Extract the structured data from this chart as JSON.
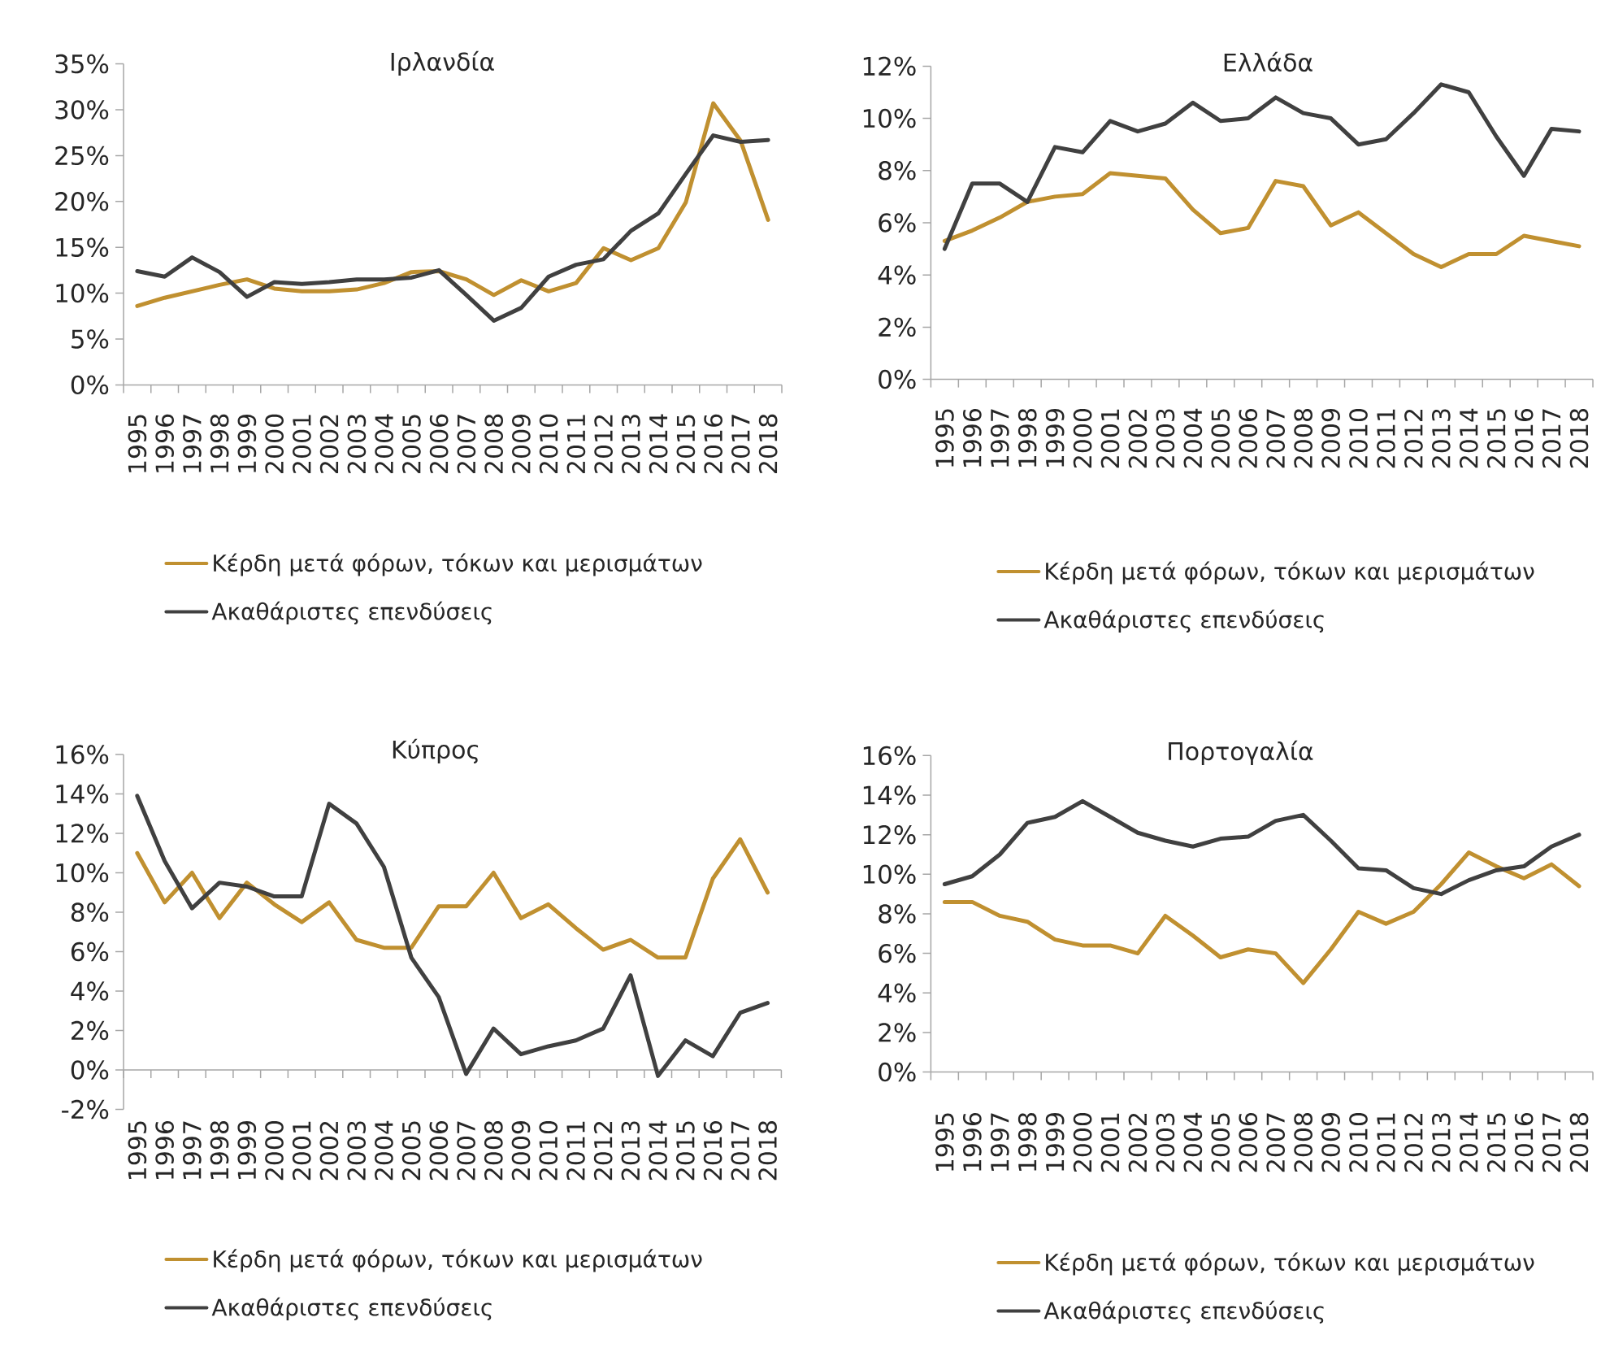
{
  "chart_data": [
    {
      "type": "line",
      "title": "Ιρλανδία",
      "categories": [
        "1995",
        "1996",
        "1997",
        "1998",
        "1999",
        "2000",
        "2001",
        "2002",
        "2003",
        "2004",
        "2005",
        "2006",
        "2007",
        "2008",
        "2009",
        "2010",
        "2011",
        "2012",
        "2013",
        "2014",
        "2015",
        "2016",
        "2017",
        "2018"
      ],
      "series": [
        {
          "name": "Κέρδη μετά φόρων, τόκων και μερισμάτων",
          "color": "#c09030",
          "values": [
            8.6,
            9.5,
            10.2,
            10.9,
            11.5,
            10.5,
            10.2,
            10.2,
            10.4,
            11.1,
            12.3,
            12.4,
            11.5,
            9.8,
            11.4,
            10.2,
            11.1,
            14.9,
            13.6,
            14.9,
            19.9,
            30.7,
            26.6,
            18.0
          ]
        },
        {
          "name": "Ακαθάριστες επενδύσεις",
          "color": "#404040",
          "values": [
            12.4,
            11.8,
            13.9,
            12.3,
            9.6,
            11.2,
            11.0,
            11.2,
            11.5,
            11.5,
            11.7,
            12.5,
            9.8,
            7.0,
            8.4,
            11.8,
            13.1,
            13.7,
            16.8,
            18.7,
            23.0,
            27.2,
            26.5,
            26.7
          ]
        }
      ],
      "ylim": [
        0,
        35
      ],
      "yticks": [
        {
          "value": 0,
          "label": "0%"
        },
        {
          "value": 5,
          "label": "5%"
        },
        {
          "value": 10,
          "label": "10%"
        },
        {
          "value": 15,
          "label": "15%"
        },
        {
          "value": 20,
          "label": "20%"
        },
        {
          "value": 25,
          "label": "25%"
        },
        {
          "value": 30,
          "label": "30%"
        },
        {
          "value": 35,
          "label": "35%"
        }
      ],
      "legend": "bottom"
    },
    {
      "type": "line",
      "title": "Ελλάδα",
      "categories": [
        "1995",
        "1996",
        "1997",
        "1998",
        "1999",
        "2000",
        "2001",
        "2002",
        "2003",
        "2004",
        "2005",
        "2006",
        "2007",
        "2008",
        "2009",
        "2010",
        "2011",
        "2012",
        "2013",
        "2014",
        "2015",
        "2016",
        "2017",
        "2018"
      ],
      "series": [
        {
          "name": "Κέρδη μετά φόρων, τόκων και μερισμάτων",
          "color": "#c09030",
          "values": [
            5.3,
            5.7,
            6.2,
            6.8,
            7.0,
            7.1,
            7.9,
            7.8,
            7.7,
            6.5,
            5.6,
            5.8,
            7.6,
            7.4,
            5.9,
            6.4,
            5.6,
            4.8,
            4.3,
            4.8,
            4.8,
            5.5,
            5.3,
            5.1
          ]
        },
        {
          "name": "Ακαθάριστες επενδύσεις",
          "color": "#404040",
          "values": [
            5.0,
            7.5,
            7.5,
            6.8,
            8.9,
            8.7,
            9.9,
            9.5,
            9.8,
            10.6,
            9.9,
            10.0,
            10.8,
            10.2,
            10.0,
            9.0,
            9.2,
            10.2,
            11.3,
            11.0,
            9.3,
            7.8,
            9.6,
            9.5
          ]
        }
      ],
      "ylim": [
        0,
        12
      ],
      "yticks": [
        {
          "value": 0,
          "label": "0%"
        },
        {
          "value": 2,
          "label": "2%"
        },
        {
          "value": 4,
          "label": "4%"
        },
        {
          "value": 6,
          "label": "6%"
        },
        {
          "value": 8,
          "label": "8%"
        },
        {
          "value": 10,
          "label": "10%"
        },
        {
          "value": 12,
          "label": "12%"
        }
      ],
      "legend": "bottom"
    },
    {
      "type": "line",
      "title": "Κύπρος",
      "categories": [
        "1995",
        "1996",
        "1997",
        "1998",
        "1999",
        "2000",
        "2001",
        "2002",
        "2003",
        "2004",
        "2005",
        "2006",
        "2007",
        "2008",
        "2009",
        "2010",
        "2011",
        "2012",
        "2013",
        "2014",
        "2015",
        "2016",
        "2017",
        "2018"
      ],
      "series": [
        {
          "name": "Κέρδη μετά φόρων, τόκων και μερισμάτων",
          "color": "#c09030",
          "values": [
            11.0,
            8.5,
            10.0,
            7.7,
            9.5,
            8.4,
            7.5,
            8.5,
            6.6,
            6.2,
            6.2,
            8.3,
            8.3,
            10.0,
            7.7,
            8.4,
            7.2,
            6.1,
            6.6,
            5.7,
            5.7,
            9.7,
            11.7,
            9.0
          ]
        },
        {
          "name": "Ακαθάριστες επενδύσεις",
          "color": "#404040",
          "values": [
            13.9,
            10.6,
            8.2,
            9.5,
            9.3,
            8.8,
            8.8,
            13.5,
            12.5,
            10.3,
            5.7,
            3.7,
            -0.2,
            2.1,
            0.8,
            1.2,
            1.5,
            2.1,
            4.8,
            -0.3,
            1.5,
            0.7,
            2.9,
            3.4
          ]
        }
      ],
      "ylim": [
        -2,
        16
      ],
      "yticks": [
        {
          "value": -2,
          "label": "-2%"
        },
        {
          "value": 0,
          "label": "0%"
        },
        {
          "value": 2,
          "label": "2%"
        },
        {
          "value": 4,
          "label": "4%"
        },
        {
          "value": 6,
          "label": "6%"
        },
        {
          "value": 8,
          "label": "8%"
        },
        {
          "value": 10,
          "label": "10%"
        },
        {
          "value": 12,
          "label": "12%"
        },
        {
          "value": 14,
          "label": "14%"
        },
        {
          "value": 16,
          "label": "16%"
        }
      ],
      "legend": "bottom"
    },
    {
      "type": "line",
      "title": "Πορτογαλία",
      "categories": [
        "1995",
        "1996",
        "1997",
        "1998",
        "1999",
        "2000",
        "2001",
        "2002",
        "2003",
        "2004",
        "2005",
        "2006",
        "2007",
        "2008",
        "2009",
        "2010",
        "2011",
        "2012",
        "2013",
        "2014",
        "2015",
        "2016",
        "2017",
        "2018"
      ],
      "series": [
        {
          "name": "Κέρδη μετά φόρων, τόκων και μερισμάτων",
          "color": "#c09030",
          "values": [
            8.6,
            8.6,
            7.9,
            7.6,
            6.7,
            6.4,
            6.4,
            6.0,
            7.9,
            6.9,
            5.8,
            6.2,
            6.0,
            4.5,
            6.2,
            8.1,
            7.5,
            8.1,
            9.5,
            11.1,
            10.4,
            9.8,
            10.5,
            9.4
          ]
        },
        {
          "name": "Ακαθάριστες επενδύσεις",
          "color": "#404040",
          "values": [
            9.5,
            9.9,
            11.0,
            12.6,
            12.9,
            13.7,
            12.9,
            12.1,
            11.7,
            11.4,
            11.8,
            11.9,
            12.7,
            13.0,
            11.7,
            10.3,
            10.2,
            9.3,
            9.0,
            9.7,
            10.2,
            10.4,
            11.4,
            12.0
          ]
        }
      ],
      "ylim": [
        0,
        16
      ],
      "yticks": [
        {
          "value": 0,
          "label": "0%"
        },
        {
          "value": 2,
          "label": "2%"
        },
        {
          "value": 4,
          "label": "4%"
        },
        {
          "value": 6,
          "label": "6%"
        },
        {
          "value": 8,
          "label": "8%"
        },
        {
          "value": 10,
          "label": "10%"
        },
        {
          "value": 12,
          "label": "12%"
        },
        {
          "value": 14,
          "label": "14%"
        },
        {
          "value": 16,
          "label": "16%"
        }
      ],
      "legend": "bottom"
    }
  ]
}
